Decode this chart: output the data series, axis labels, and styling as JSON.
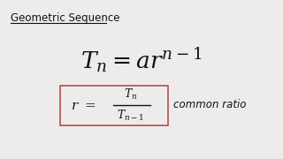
{
  "background_color": "#eeecea",
  "title": "Geometric Sequence",
  "formula1": "$T_n = ar^{n-1}$",
  "formula2_left": "$r = $",
  "frac_num": "$T_n$",
  "frac_den": "$T_{n-1}$",
  "comment": "common ratio",
  "box_color": "#b05050",
  "text_color": "#111111"
}
